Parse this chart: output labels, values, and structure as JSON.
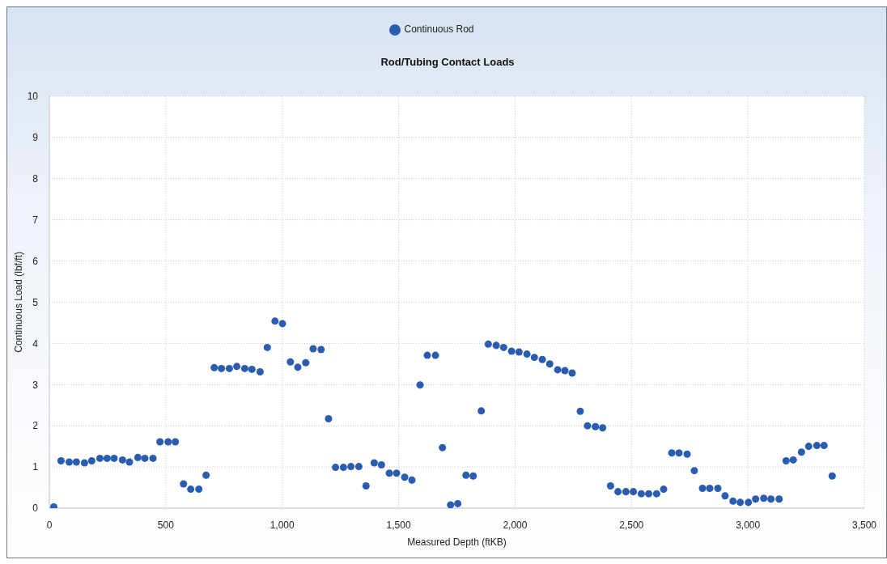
{
  "chart_data": {
    "type": "scatter",
    "title": "Rod/Tubing Contact Loads",
    "xlabel": "Measured Depth (ftKB)",
    "ylabel": "Continuous Load (lbf/ft)",
    "x": [
      19,
      50,
      85,
      116,
      151,
      182,
      217,
      248,
      278,
      314,
      344,
      380,
      410,
      445,
      475,
      510,
      541,
      576,
      607,
      642,
      673,
      708,
      739,
      773,
      805,
      839,
      870,
      905,
      936,
      969,
      1001,
      1035,
      1067,
      1101,
      1133,
      1167,
      1199,
      1229,
      1263,
      1295,
      1329,
      1360,
      1395,
      1426,
      1460,
      1491,
      1526,
      1557,
      1592,
      1623,
      1658,
      1688,
      1723,
      1754,
      1789,
      1820,
      1855,
      1885,
      1919,
      1951,
      1985,
      2017,
      2051,
      2083,
      2117,
      2149,
      2183,
      2214,
      2245,
      2280,
      2311,
      2345,
      2376,
      2410,
      2442,
      2476,
      2508,
      2542,
      2574,
      2608,
      2638,
      2673,
      2704,
      2739,
      2770,
      2805,
      2836,
      2871,
      2902,
      2936,
      2967,
      3002,
      3033,
      3068,
      3099,
      3134,
      3164,
      3195,
      3230,
      3261,
      3296,
      3327,
      3362
    ],
    "series": [
      {
        "name": "Continuous Rod",
        "color": "#2a5db0",
        "values": [
          0.03,
          1.15,
          1.12,
          1.12,
          1.1,
          1.15,
          1.21,
          1.21,
          1.21,
          1.17,
          1.12,
          1.23,
          1.21,
          1.21,
          1.61,
          1.61,
          1.61,
          0.59,
          0.46,
          0.46,
          0.8,
          3.41,
          3.39,
          3.39,
          3.44,
          3.39,
          3.37,
          3.31,
          3.9,
          4.54,
          4.48,
          3.55,
          3.42,
          3.53,
          3.87,
          3.85,
          2.17,
          0.99,
          0.99,
          1.01,
          1.01,
          0.54,
          1.1,
          1.05,
          0.85,
          0.85,
          0.75,
          0.68,
          2.99,
          3.71,
          3.71,
          1.47,
          0.08,
          0.11,
          0.8,
          0.78,
          2.36,
          3.98,
          3.95,
          3.9,
          3.81,
          3.79,
          3.74,
          3.66,
          3.61,
          3.5,
          3.36,
          3.34,
          3.28,
          2.35,
          2.0,
          1.98,
          1.95,
          0.54,
          0.4,
          0.4,
          0.4,
          0.35,
          0.35,
          0.35,
          0.46,
          1.34,
          1.34,
          1.31,
          0.91,
          0.48,
          0.48,
          0.48,
          0.3,
          0.17,
          0.14,
          0.14,
          0.22,
          0.24,
          0.22,
          0.22,
          1.15,
          1.17,
          1.36,
          1.5,
          1.52,
          1.52,
          0.78
        ]
      }
    ],
    "xlim": [
      0,
      3500
    ],
    "xticks": [
      0,
      500,
      {
        "value": 1000,
        "label": "1,000"
      },
      {
        "value": 1500,
        "label": "1,500"
      },
      {
        "value": 2000,
        "label": "2,000"
      },
      {
        "value": 2500,
        "label": "2,500"
      },
      {
        "value": 3000,
        "label": "3,000"
      },
      {
        "value": 3500,
        "label": "3,500"
      }
    ],
    "ylim": [
      0,
      10
    ],
    "yticks": [
      0,
      1,
      2,
      3,
      4,
      5,
      6,
      7,
      8,
      9,
      10
    ],
    "grid": true,
    "legend": "top",
    "marker": "circle"
  }
}
